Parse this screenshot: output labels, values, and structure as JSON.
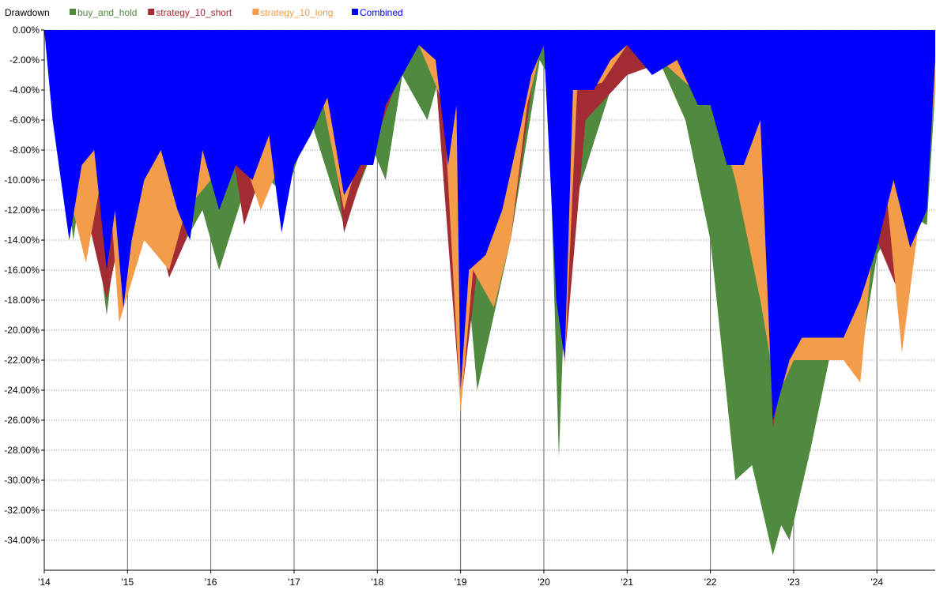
{
  "chart_data": {
    "type": "area",
    "title": "Drawdown",
    "ylim": [
      -36,
      0
    ],
    "y_ticks": [
      0,
      -2,
      -4,
      -6,
      -8,
      -10,
      -12,
      -14,
      -16,
      -18,
      -20,
      -22,
      -24,
      -26,
      -28,
      -30,
      -32,
      -34
    ],
    "y_tick_labels": [
      "0.00%",
      "-2.00%",
      "-4.00%",
      "-6.00%",
      "-8.00%",
      "-10.00%",
      "-12.00%",
      "-14.00%",
      "-16.00%",
      "-18.00%",
      "-20.00%",
      "-22.00%",
      "-24.00%",
      "-26.00%",
      "-28.00%",
      "-30.00%",
      "-32.00%",
      "-34.00%"
    ],
    "xlim": [
      2014.0,
      2024.7
    ],
    "x_ticks": [
      2014,
      2015,
      2016,
      2017,
      2018,
      2019,
      2020,
      2021,
      2022,
      2023,
      2024
    ],
    "x_tick_labels": [
      "'14",
      "'15",
      "'16",
      "'17",
      "'18",
      "'19",
      "'20",
      "'21",
      "'22",
      "'23",
      "'24"
    ],
    "grid": {
      "x": "solid",
      "y": "dotted"
    },
    "legend_position": "top-left",
    "series": [
      {
        "name": "buy_and_hold",
        "color": "#4f8a3f",
        "x": [
          2014.0,
          2014.15,
          2014.35,
          2014.5,
          2014.75,
          2014.9,
          2015.0,
          2015.3,
          2015.6,
          2015.9,
          2016.1,
          2016.5,
          2016.9,
          2017.2,
          2017.6,
          2017.95,
          2018.1,
          2018.3,
          2018.6,
          2018.8,
          2018.95,
          2019.2,
          2019.6,
          2019.95,
          2020.05,
          2020.18,
          2020.25,
          2020.4,
          2020.8,
          2021.0,
          2021.3,
          2021.7,
          2022.0,
          2022.3,
          2022.5,
          2022.75,
          2022.85,
          2022.95,
          2023.2,
          2023.5,
          2023.8,
          2024.0,
          2024.3,
          2024.6,
          2024.7
        ],
        "y": [
          0,
          -5,
          -14,
          -8,
          -19,
          -12,
          -16,
          -13,
          -15,
          -12,
          -16,
          -9,
          -11,
          -6,
          -13,
          -8,
          -10,
          -3,
          -6,
          -2,
          -8,
          -24,
          -14,
          -2,
          -3,
          -28.5,
          -18,
          -11,
          -4,
          -2,
          -1,
          -6,
          -14,
          -30,
          -29,
          -35,
          -33,
          -34,
          -28,
          -20,
          -22,
          -15,
          -12,
          -13,
          -4
        ]
      },
      {
        "name": "strategy_10_short",
        "color": "#a32b34",
        "x": [
          2014.0,
          2014.5,
          2014.75,
          2014.9,
          2015.1,
          2015.3,
          2015.5,
          2015.7,
          2015.9,
          2016.2,
          2016.4,
          2016.7,
          2016.9,
          2017.2,
          2017.4,
          2017.6,
          2017.8,
          2018.0,
          2018.2,
          2018.5,
          2018.7,
          2019.0,
          2019.2,
          2019.6,
          2019.95,
          2020.1,
          2020.25,
          2020.5,
          2021.0,
          2021.5,
          2022.0,
          2022.4,
          2022.6,
          2022.75,
          2022.9,
          2023.2,
          2023.6,
          2024.0,
          2024.3,
          2024.7
        ],
        "y": [
          0,
          -12,
          -18,
          -14,
          -8,
          -12,
          -16.5,
          -14,
          -8,
          -6,
          -13,
          -8,
          -10,
          -6,
          -4,
          -13.5,
          -10,
          -7,
          -4,
          -1,
          -3,
          -25,
          -16,
          -14,
          0,
          -4,
          -22,
          -6,
          -3,
          -2,
          -5,
          -8,
          -3,
          -26.5,
          -22,
          -22,
          -22,
          -14,
          -18,
          -4
        ]
      },
      {
        "name": "strategy_10_long",
        "color": "#f39c4a",
        "x": [
          2014.0,
          2014.3,
          2014.5,
          2014.75,
          2014.9,
          2015.2,
          2015.5,
          2015.7,
          2016.0,
          2016.3,
          2016.6,
          2016.9,
          2017.1,
          2017.3,
          2017.6,
          2017.8,
          2018.0,
          2018.2,
          2018.5,
          2018.8,
          2019.0,
          2019.15,
          2019.4,
          2019.6,
          2019.8,
          2020.0,
          2020.15,
          2020.25,
          2020.4,
          2020.7,
          2021.0,
          2021.4,
          2021.8,
          2022.0,
          2022.3,
          2022.6,
          2022.8,
          2023.0,
          2023.4,
          2023.6,
          2023.8,
          2023.95,
          2024.1,
          2024.3,
          2024.5,
          2024.7
        ],
        "y": [
          0,
          -11,
          -15.5,
          -8,
          -19.5,
          -14,
          -16,
          -12,
          -10,
          -7,
          -12,
          -8,
          -6,
          -3.5,
          -12,
          -8,
          -6,
          -4,
          -1,
          -5,
          -25.5,
          -16,
          -18.5,
          -14,
          -5,
          -0.5,
          -3,
          -22.5,
          -4,
          -3.5,
          -1,
          -2,
          -4,
          -4,
          -10,
          -18,
          -24.5,
          -22,
          -22,
          -22,
          -23.5,
          -14.5,
          -10,
          -21.5,
          -13,
          -4
        ]
      },
      {
        "name": "Combined",
        "color": "#0000ff",
        "x": [
          2014.0,
          2014.1,
          2014.3,
          2014.45,
          2014.6,
          2014.75,
          2014.85,
          2014.95,
          2015.05,
          2015.2,
          2015.4,
          2015.6,
          2015.75,
          2015.9,
          2016.1,
          2016.3,
          2016.5,
          2016.7,
          2016.85,
          2017.0,
          2017.2,
          2017.4,
          2017.6,
          2017.8,
          2017.95,
          2018.1,
          2018.3,
          2018.5,
          2018.7,
          2018.85,
          2018.95,
          2019.0,
          2019.1,
          2019.3,
          2019.5,
          2019.7,
          2019.85,
          2020.0,
          2020.15,
          2020.25,
          2020.35,
          2020.6,
          2020.8,
          2021.0,
          2021.3,
          2021.6,
          2021.85,
          2022.0,
          2022.2,
          2022.4,
          2022.6,
          2022.75,
          2022.85,
          2022.95,
          2023.1,
          2023.4,
          2023.6,
          2023.8,
          2024.0,
          2024.2,
          2024.4,
          2024.6,
          2024.7
        ],
        "y": [
          0,
          -6,
          -14,
          -9,
          -8,
          -16,
          -12,
          -18.5,
          -14,
          -10,
          -8,
          -12,
          -14,
          -8,
          -12,
          -9,
          -10,
          -7,
          -13.5,
          -9,
          -7,
          -4.5,
          -11,
          -9,
          -9,
          -5,
          -3,
          -1,
          -2,
          -9,
          -5,
          -24,
          -16,
          -15,
          -12,
          -7,
          -3,
          -1,
          -18,
          -22,
          -4,
          -4,
          -2,
          -1,
          -3,
          -2,
          -5,
          -5,
          -9,
          -9,
          -6,
          -26,
          -24,
          -22,
          -20.5,
          -20.5,
          -20.5,
          -18,
          -14.5,
          -10,
          -14.5,
          -12,
          -2
        ]
      }
    ]
  }
}
